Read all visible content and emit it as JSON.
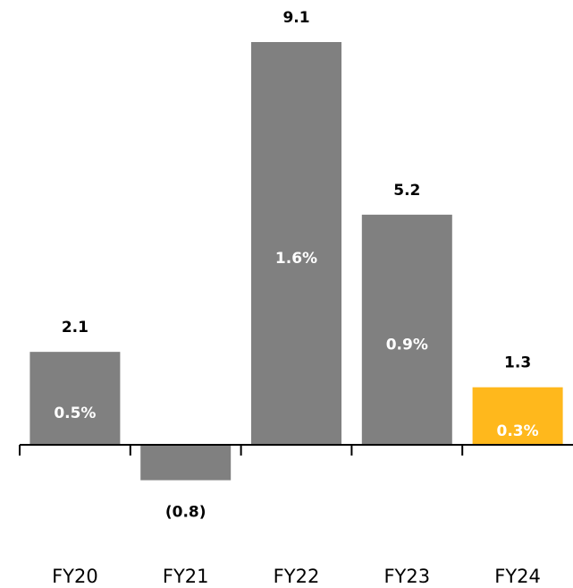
{
  "chart_data": {
    "type": "bar",
    "categories": [
      "FY20",
      "FY21",
      "FY22",
      "FY23",
      "FY24"
    ],
    "values": [
      2.1,
      -0.8,
      9.1,
      5.2,
      1.3
    ],
    "value_labels": [
      "2.1",
      "(0.8)",
      "9.1",
      "5.2",
      "1.3"
    ],
    "percent_labels": [
      "0.5%",
      "",
      "1.6%",
      "0.9%",
      "0.3%"
    ],
    "ylim": [
      -1.0,
      9.1
    ],
    "grid": false,
    "colors": {
      "default_bar": "#808080",
      "highlight_bar": "#FFB81C",
      "axis": "#000000",
      "value_text": "#000000",
      "inner_text": "#ffffff"
    },
    "highlight_index": 4
  }
}
